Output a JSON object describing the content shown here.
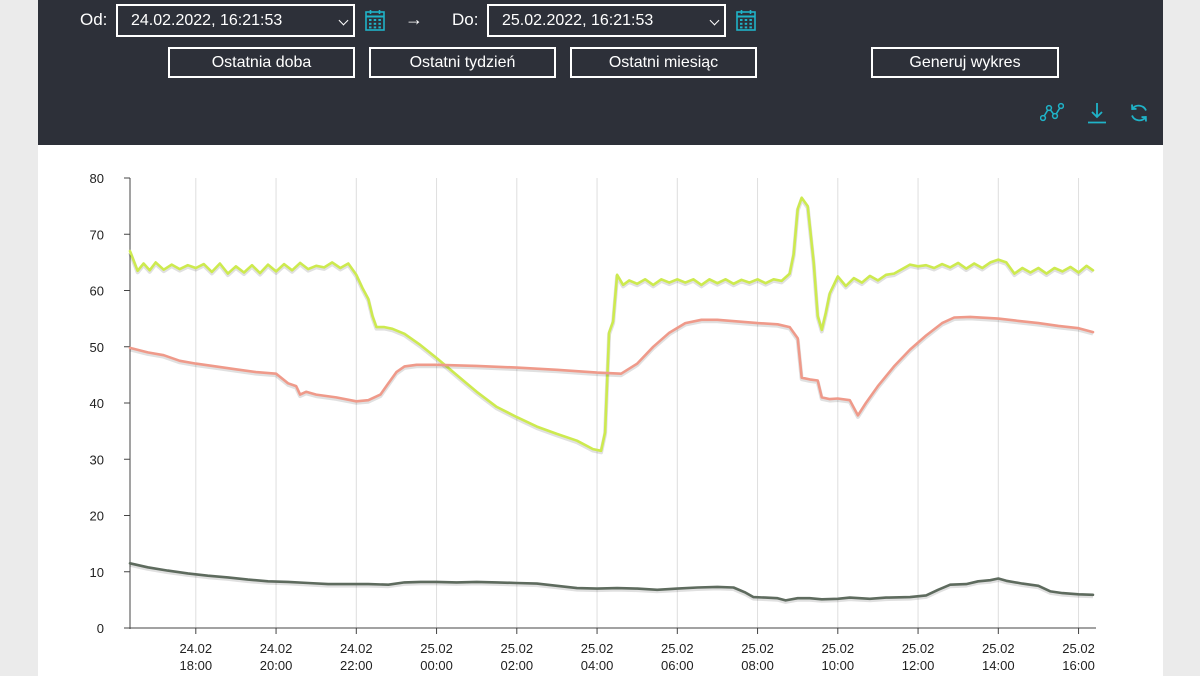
{
  "filter": {
    "from_label": "Od:",
    "from_value": "24.02.2022, 16:21:53",
    "arrow": "→",
    "to_label": "Do:",
    "to_value": "25.02.2022, 16:21:53",
    "buttons": {
      "last_day": "Ostatnia doba",
      "last_week": "Ostatni tydzień",
      "last_month": "Ostatni miesiąc",
      "generate": "Generuj wykres"
    },
    "tools": [
      "chart-line-icon",
      "download-icon",
      "refresh-icon"
    ],
    "accent_color": "#1fb3c8"
  },
  "chart_data": {
    "type": "line",
    "ylim": [
      0,
      80
    ],
    "y_ticks": [
      0,
      10,
      20,
      30,
      40,
      50,
      60,
      70,
      80
    ],
    "x_range_hours": [
      16.36,
      40.36
    ],
    "x_ticks": [
      {
        "h": 18,
        "date": "24.02",
        "time": "18:00"
      },
      {
        "h": 20,
        "date": "24.02",
        "time": "20:00"
      },
      {
        "h": 22,
        "date": "24.02",
        "time": "22:00"
      },
      {
        "h": 24,
        "date": "25.02",
        "time": "00:00"
      },
      {
        "h": 26,
        "date": "25.02",
        "time": "02:00"
      },
      {
        "h": 28,
        "date": "25.02",
        "time": "04:00"
      },
      {
        "h": 30,
        "date": "25.02",
        "time": "06:00"
      },
      {
        "h": 32,
        "date": "25.02",
        "time": "08:00"
      },
      {
        "h": 34,
        "date": "25.02",
        "time": "10:00"
      },
      {
        "h": 36,
        "date": "25.02",
        "time": "12:00"
      },
      {
        "h": 38,
        "date": "25.02",
        "time": "14:00"
      },
      {
        "h": 40,
        "date": "25.02",
        "time": "16:00"
      }
    ],
    "grid": "vertical",
    "series": [
      {
        "color": "#cdea4f",
        "points": [
          [
            16.36,
            67
          ],
          [
            16.55,
            63.5
          ],
          [
            16.7,
            64.8
          ],
          [
            16.85,
            63.6
          ],
          [
            17.0,
            65
          ],
          [
            17.2,
            63.7
          ],
          [
            17.4,
            64.6
          ],
          [
            17.6,
            63.8
          ],
          [
            17.8,
            64.5
          ],
          [
            18.0,
            64.0
          ],
          [
            18.2,
            64.7
          ],
          [
            18.4,
            63.3
          ],
          [
            18.6,
            64.8
          ],
          [
            18.8,
            63.0
          ],
          [
            19.0,
            64.3
          ],
          [
            19.2,
            63.2
          ],
          [
            19.4,
            64.5
          ],
          [
            19.6,
            63.1
          ],
          [
            19.8,
            64.6
          ],
          [
            20.0,
            63.4
          ],
          [
            20.2,
            64.7
          ],
          [
            20.4,
            63.6
          ],
          [
            20.6,
            64.9
          ],
          [
            20.8,
            63.8
          ],
          [
            21.0,
            64.4
          ],
          [
            21.2,
            64.1
          ],
          [
            21.4,
            65.0
          ],
          [
            21.6,
            64.0
          ],
          [
            21.8,
            64.8
          ],
          [
            22.0,
            62.8
          ],
          [
            22.15,
            60.5
          ],
          [
            22.3,
            58.5
          ],
          [
            22.4,
            55.5
          ],
          [
            22.5,
            53.5
          ],
          [
            22.7,
            53.5
          ],
          [
            22.9,
            53.2
          ],
          [
            23.2,
            52.3
          ],
          [
            23.6,
            50.3
          ],
          [
            24.0,
            48.0
          ],
          [
            24.5,
            45.0
          ],
          [
            25.0,
            42.0
          ],
          [
            25.5,
            39.3
          ],
          [
            26.0,
            37.5
          ],
          [
            26.5,
            35.8
          ],
          [
            27.0,
            34.5
          ],
          [
            27.5,
            33.3
          ],
          [
            27.9,
            31.8
          ],
          [
            28.1,
            31.5
          ],
          [
            28.2,
            34.8
          ],
          [
            28.3,
            52.5
          ],
          [
            28.4,
            54.5
          ],
          [
            28.5,
            62.8
          ],
          [
            28.65,
            61.0
          ],
          [
            28.8,
            61.8
          ],
          [
            29.0,
            61.2
          ],
          [
            29.2,
            62.0
          ],
          [
            29.4,
            61.0
          ],
          [
            29.6,
            62.0
          ],
          [
            29.8,
            61.4
          ],
          [
            30.0,
            62.0
          ],
          [
            30.2,
            61.4
          ],
          [
            30.4,
            62.0
          ],
          [
            30.6,
            61.0
          ],
          [
            30.8,
            62.0
          ],
          [
            31.0,
            61.3
          ],
          [
            31.2,
            62.0
          ],
          [
            31.4,
            61.2
          ],
          [
            31.6,
            61.9
          ],
          [
            31.8,
            61.4
          ],
          [
            32.0,
            62.0
          ],
          [
            32.2,
            61.3
          ],
          [
            32.4,
            62.0
          ],
          [
            32.6,
            61.7
          ],
          [
            32.8,
            63.0
          ],
          [
            32.9,
            66.5
          ],
          [
            33.0,
            74.5
          ],
          [
            33.1,
            76.5
          ],
          [
            33.25,
            75.0
          ],
          [
            33.4,
            65.0
          ],
          [
            33.5,
            55.5
          ],
          [
            33.6,
            53.0
          ],
          [
            33.7,
            56.0
          ],
          [
            33.8,
            59.5
          ],
          [
            34.0,
            62.5
          ],
          [
            34.2,
            60.8
          ],
          [
            34.4,
            62.2
          ],
          [
            34.6,
            61.4
          ],
          [
            34.8,
            62.6
          ],
          [
            35.0,
            61.8
          ],
          [
            35.2,
            62.8
          ],
          [
            35.4,
            63.0
          ],
          [
            35.6,
            63.8
          ],
          [
            35.8,
            64.6
          ],
          [
            36.0,
            64.3
          ],
          [
            36.2,
            64.5
          ],
          [
            36.4,
            64.0
          ],
          [
            36.6,
            64.7
          ],
          [
            36.8,
            64.1
          ],
          [
            37.0,
            64.9
          ],
          [
            37.2,
            63.9
          ],
          [
            37.4,
            64.8
          ],
          [
            37.6,
            64.0
          ],
          [
            37.8,
            65.0
          ],
          [
            38.0,
            65.5
          ],
          [
            38.2,
            65.0
          ],
          [
            38.4,
            63.0
          ],
          [
            38.6,
            64.0
          ],
          [
            38.8,
            63.2
          ],
          [
            39.0,
            64.0
          ],
          [
            39.2,
            63.0
          ],
          [
            39.4,
            64.0
          ],
          [
            39.6,
            63.4
          ],
          [
            39.8,
            64.2
          ],
          [
            40.0,
            63.2
          ],
          [
            40.2,
            64.4
          ],
          [
            40.36,
            63.6
          ]
        ]
      },
      {
        "color": "#ef9a8a",
        "points": [
          [
            16.36,
            49.8
          ],
          [
            16.8,
            49.0
          ],
          [
            17.2,
            48.5
          ],
          [
            17.6,
            47.5
          ],
          [
            18.0,
            47.0
          ],
          [
            18.5,
            46.5
          ],
          [
            19.0,
            46.0
          ],
          [
            19.5,
            45.5
          ],
          [
            20.0,
            45.2
          ],
          [
            20.3,
            43.5
          ],
          [
            20.5,
            43.0
          ],
          [
            20.6,
            41.5
          ],
          [
            20.75,
            42.0
          ],
          [
            21.0,
            41.5
          ],
          [
            21.5,
            41.0
          ],
          [
            22.0,
            40.3
          ],
          [
            22.3,
            40.5
          ],
          [
            22.6,
            41.5
          ],
          [
            22.8,
            43.5
          ],
          [
            23.0,
            45.5
          ],
          [
            23.2,
            46.5
          ],
          [
            23.5,
            46.8
          ],
          [
            24.0,
            46.8
          ],
          [
            25.0,
            46.6
          ],
          [
            26.0,
            46.3
          ],
          [
            27.0,
            45.9
          ],
          [
            28.0,
            45.4
          ],
          [
            28.6,
            45.2
          ],
          [
            29.0,
            47.0
          ],
          [
            29.4,
            50.0
          ],
          [
            29.8,
            52.5
          ],
          [
            30.2,
            54.2
          ],
          [
            30.6,
            54.8
          ],
          [
            31.0,
            54.8
          ],
          [
            31.5,
            54.5
          ],
          [
            32.0,
            54.2
          ],
          [
            32.5,
            54.0
          ],
          [
            32.8,
            53.5
          ],
          [
            33.0,
            51.5
          ],
          [
            33.1,
            44.5
          ],
          [
            33.3,
            44.2
          ],
          [
            33.5,
            44.0
          ],
          [
            33.6,
            41.0
          ],
          [
            33.8,
            40.7
          ],
          [
            34.0,
            40.8
          ],
          [
            34.3,
            40.5
          ],
          [
            34.5,
            37.8
          ],
          [
            34.7,
            40.0
          ],
          [
            35.0,
            43.0
          ],
          [
            35.4,
            46.5
          ],
          [
            35.8,
            49.5
          ],
          [
            36.2,
            52.0
          ],
          [
            36.6,
            54.2
          ],
          [
            36.9,
            55.2
          ],
          [
            37.3,
            55.3
          ],
          [
            38.0,
            55.0
          ],
          [
            38.5,
            54.6
          ],
          [
            39.0,
            54.2
          ],
          [
            39.5,
            53.7
          ],
          [
            40.0,
            53.3
          ],
          [
            40.36,
            52.6
          ]
        ]
      },
      {
        "color": "#5e6b5e",
        "points": [
          [
            16.36,
            11.5
          ],
          [
            16.8,
            10.8
          ],
          [
            17.3,
            10.2
          ],
          [
            17.8,
            9.7
          ],
          [
            18.3,
            9.3
          ],
          [
            18.8,
            9.0
          ],
          [
            19.3,
            8.6
          ],
          [
            19.8,
            8.3
          ],
          [
            20.3,
            8.2
          ],
          [
            20.8,
            8.0
          ],
          [
            21.3,
            7.8
          ],
          [
            21.8,
            7.8
          ],
          [
            22.3,
            7.8
          ],
          [
            22.8,
            7.7
          ],
          [
            23.2,
            8.1
          ],
          [
            23.6,
            8.2
          ],
          [
            24.0,
            8.2
          ],
          [
            24.5,
            8.1
          ],
          [
            25.0,
            8.2
          ],
          [
            25.5,
            8.1
          ],
          [
            26.0,
            8.0
          ],
          [
            26.5,
            7.9
          ],
          [
            27.0,
            7.5
          ],
          [
            27.5,
            7.1
          ],
          [
            28.0,
            7.0
          ],
          [
            28.5,
            7.1
          ],
          [
            29.0,
            7.0
          ],
          [
            29.5,
            6.8
          ],
          [
            30.0,
            7.0
          ],
          [
            30.5,
            7.2
          ],
          [
            31.0,
            7.3
          ],
          [
            31.4,
            7.2
          ],
          [
            31.7,
            6.3
          ],
          [
            31.9,
            5.5
          ],
          [
            32.2,
            5.4
          ],
          [
            32.5,
            5.3
          ],
          [
            32.7,
            4.9
          ],
          [
            33.0,
            5.3
          ],
          [
            33.3,
            5.3
          ],
          [
            33.6,
            5.1
          ],
          [
            34.0,
            5.2
          ],
          [
            34.3,
            5.4
          ],
          [
            34.8,
            5.2
          ],
          [
            35.2,
            5.4
          ],
          [
            35.8,
            5.5
          ],
          [
            36.2,
            5.8
          ],
          [
            36.5,
            6.8
          ],
          [
            36.8,
            7.7
          ],
          [
            37.2,
            7.8
          ],
          [
            37.5,
            8.3
          ],
          [
            37.8,
            8.5
          ],
          [
            38.0,
            8.8
          ],
          [
            38.2,
            8.4
          ],
          [
            38.6,
            7.9
          ],
          [
            39.0,
            7.5
          ],
          [
            39.3,
            6.5
          ],
          [
            39.6,
            6.2
          ],
          [
            40.0,
            6.0
          ],
          [
            40.36,
            5.9
          ]
        ]
      }
    ]
  }
}
